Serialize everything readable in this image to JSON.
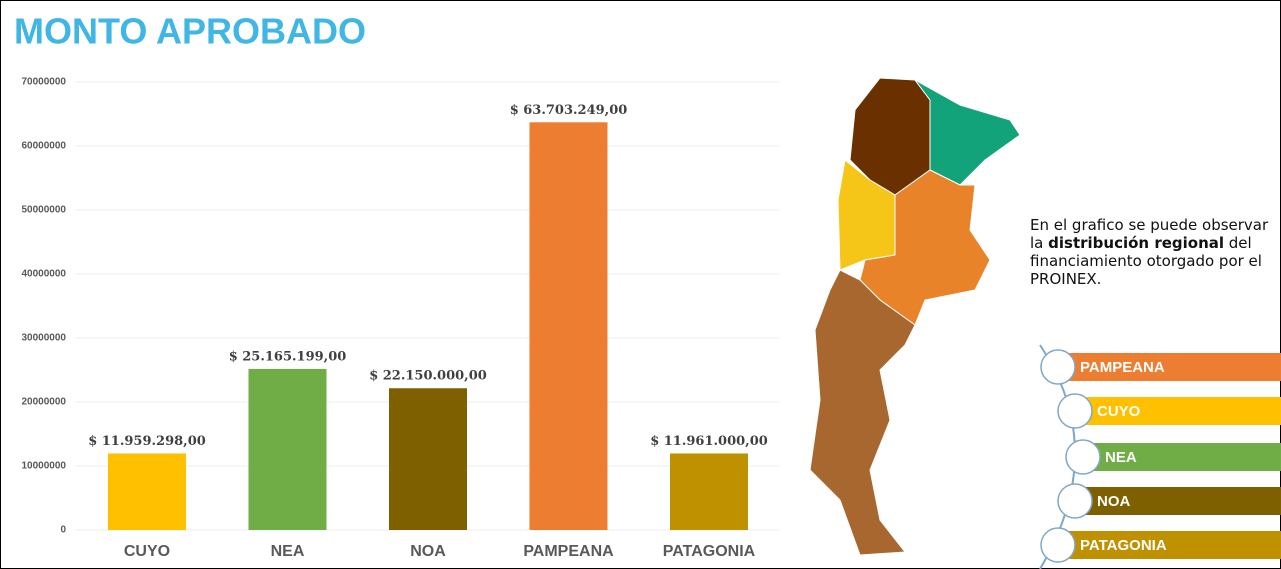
{
  "chart_data": {
    "type": "bar",
    "title": "MONTO APROBADO",
    "categories": [
      "CUYO",
      "NEA",
      "NOA",
      "PAMPEANA",
      "PATAGONIA"
    ],
    "values": [
      11959298,
      25165199,
      22150000,
      63703249,
      11961000
    ],
    "value_labels": [
      "$ 11.959.298,00",
      "$ 25.165.199,00",
      "$ 22.150.000,00",
      "$ 63.703.249,00",
      "$ 11.961.000,00"
    ],
    "colors": [
      "#ffc000",
      "#70ad47",
      "#7f6000",
      "#ed7d31",
      "#bf9000"
    ],
    "ylim": [
      0,
      70000000
    ],
    "yticks": [
      0,
      10000000,
      20000000,
      30000000,
      40000000,
      50000000,
      60000000,
      70000000
    ],
    "grid": true,
    "note": [
      "En el grafico se puede observar la ",
      "distribución regional",
      " del financiamiento otorgado por el PROINEX."
    ],
    "legend": [
      {
        "name": "PAMPEANA",
        "color": "#ed7d31"
      },
      {
        "name": "CUYO",
        "color": "#ffc000"
      },
      {
        "name": "NEA",
        "color": "#70ad47"
      },
      {
        "name": "NOA",
        "color": "#7f6000"
      },
      {
        "name": "PATAGONIA",
        "color": "#bf9000"
      }
    ]
  }
}
